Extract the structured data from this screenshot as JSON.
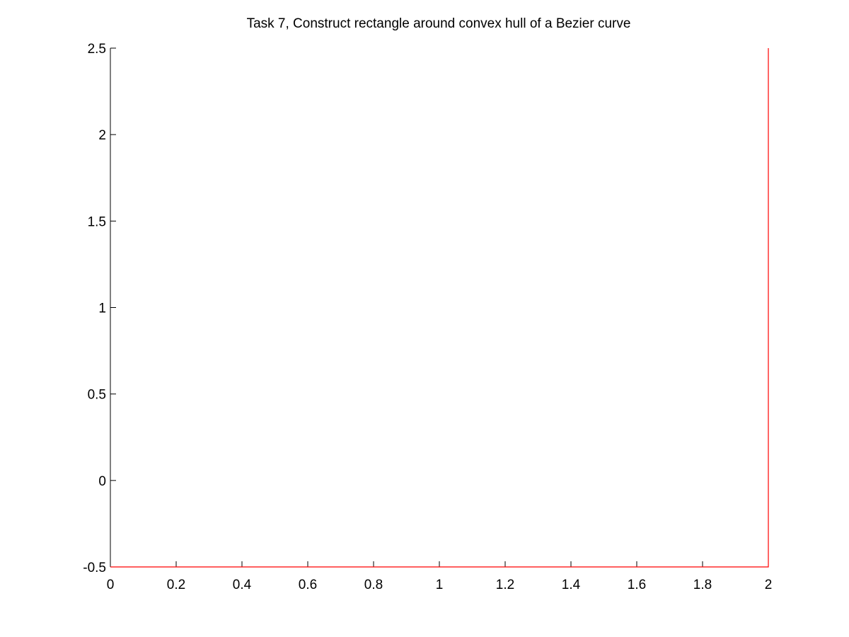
{
  "chart_data": {
    "type": "line",
    "title": "Task 7, Construct rectangle around convex hull of a Bezier curve",
    "xlabel": "",
    "ylabel": "",
    "xlim": [
      0,
      2
    ],
    "ylim": [
      -0.5,
      2.5
    ],
    "grid": false,
    "x_ticks": [
      {
        "value": 0,
        "label": "0"
      },
      {
        "value": 0.2,
        "label": "0.2"
      },
      {
        "value": 0.4,
        "label": "0.4"
      },
      {
        "value": 0.6,
        "label": "0.6"
      },
      {
        "value": 0.8,
        "label": "0.8"
      },
      {
        "value": 1,
        "label": "1"
      },
      {
        "value": 1.2,
        "label": "1.2"
      },
      {
        "value": 1.4,
        "label": "1.4"
      },
      {
        "value": 1.6,
        "label": "1.6"
      },
      {
        "value": 1.8,
        "label": "1.8"
      },
      {
        "value": 2,
        "label": "2"
      }
    ],
    "y_ticks": [
      {
        "value": -0.5,
        "label": "-0.5"
      },
      {
        "value": 0,
        "label": "0"
      },
      {
        "value": 0.5,
        "label": "0.5"
      },
      {
        "value": 1,
        "label": "1"
      },
      {
        "value": 1.5,
        "label": "1.5"
      },
      {
        "value": 2,
        "label": "2"
      },
      {
        "value": 2.5,
        "label": "2.5"
      }
    ],
    "series": [
      {
        "color": "#ff0000",
        "points": [
          {
            "x": 0,
            "y": -0.5
          },
          {
            "x": 2,
            "y": -0.5
          },
          {
            "x": 2,
            "y": 2.5
          }
        ]
      }
    ]
  }
}
